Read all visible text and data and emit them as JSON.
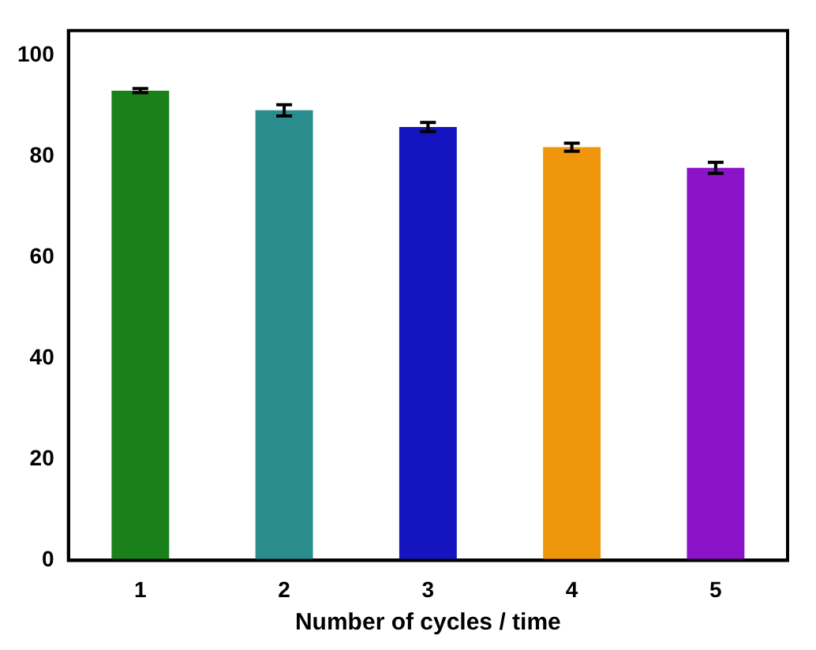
{
  "chart_data": {
    "type": "bar",
    "xlabel": "Number of cycles / time",
    "categories": [
      "1",
      "2",
      "3",
      "4",
      "5"
    ],
    "values": [
      93.1,
      89.2,
      85.9,
      81.9,
      77.8
    ],
    "errors": [
      0.4,
      1.1,
      0.9,
      0.8,
      1.1
    ],
    "colors": [
      "#1a801a",
      "#2a8c8c",
      "#1414c0",
      "#f0960c",
      "#8c14c8"
    ],
    "ylim": [
      0,
      105
    ],
    "yticks": [
      0,
      20,
      40,
      60,
      80,
      100
    ],
    "grid": false,
    "legend": false
  }
}
